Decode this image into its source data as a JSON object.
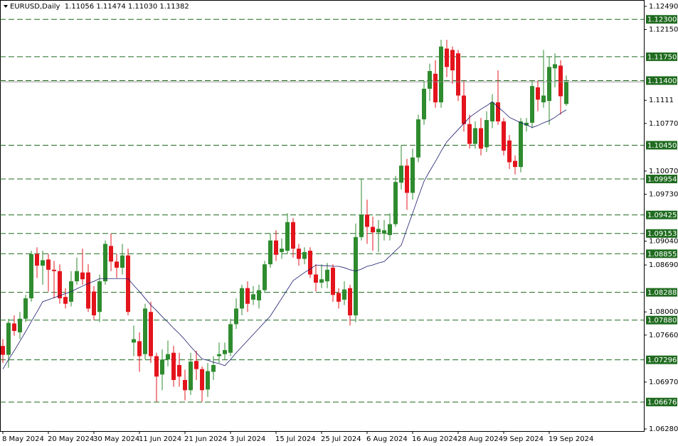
{
  "chart_data": {
    "type": "candlestick",
    "header": "EURUSD,Daily  1.11056 1.11474 1.11030 1.11382",
    "categories": [
      "8 May 2024",
      null,
      null,
      null,
      null,
      null,
      null,
      null,
      "20 May 2024",
      null,
      null,
      null,
      null,
      null,
      null,
      null,
      "30 May 2024",
      null,
      null,
      null,
      null,
      null,
      null,
      null,
      "11 Jun 2024",
      null,
      null,
      null,
      null,
      null,
      null,
      null,
      "21 Jun 2024",
      null,
      null,
      null,
      null,
      null,
      null,
      null,
      "3 Jul 2024",
      null,
      null,
      null,
      null,
      null,
      null,
      null,
      "15 Jul 2024",
      null,
      null,
      null,
      null,
      null,
      null,
      null,
      "25 Jul 2024",
      null,
      null,
      null,
      null,
      null,
      null,
      null,
      "6 Aug 2024",
      null,
      null,
      null,
      null,
      null,
      null,
      null,
      "16 Aug 2024",
      null,
      null,
      null,
      null,
      null,
      null,
      null,
      "28 Aug 2024",
      null,
      null,
      null,
      null,
      null,
      null,
      null,
      "9 Sep 2024",
      null,
      null,
      null,
      null,
      null,
      null,
      null,
      "19 Sep 2024",
      null,
      null,
      null
    ],
    "open": [
      1.075,
      1.0737,
      1.0783,
      1.077,
      1.079,
      1.082,
      1.0885,
      1.0868,
      1.0877,
      1.0862,
      1.086,
      1.0822,
      1.0815,
      1.0845,
      1.0858,
      1.0858,
      1.083,
      1.08,
      1.0845,
      1.0897,
      1.0874,
      1.0865,
      1.0883,
      1.0755,
      1.0757,
      1.0738,
      1.08,
      1.0735,
      1.0708,
      1.073,
      1.074,
      1.0722,
      1.07,
      1.0685,
      1.0728,
      1.0716,
      1.0686,
      1.0712,
      1.0735,
      1.0738,
      1.074,
      1.0782,
      1.0805,
      1.0835,
      1.0818,
      1.0817,
      1.0832,
      1.087,
      1.0905,
      1.0888,
      1.089,
      1.0932,
      1.0893,
      1.0878,
      1.089,
      1.0855,
      1.0843,
      1.0845,
      1.0865,
      1.0828,
      1.0818,
      1.0835,
      1.0795,
      1.091,
      1.0943,
      1.0925,
      1.0917,
      1.0915,
      1.0913,
      1.0929,
      1.099,
      1.1015,
      1.0975,
      1.1027,
      1.1083,
      1.1128,
      1.115,
      1.1108,
      1.1187,
      1.1185,
      1.118,
      1.1118,
      1.1076,
      1.1047,
      1.107,
      1.1042,
      1.108,
      1.1108,
      1.108,
      1.1052,
      1.1022,
      1.1013,
      1.1074,
      1.1078,
      1.113,
      1.1108,
      1.111,
      1.1158,
      1.1162,
      1.11056
    ],
    "high": [
      1.076,
      1.079,
      1.0795,
      1.08,
      1.0825,
      1.089,
      1.0895,
      1.089,
      1.0885,
      1.0875,
      1.087,
      1.0835,
      1.086,
      1.088,
      1.0893,
      1.087,
      1.0838,
      1.0855,
      1.0905,
      1.0915,
      1.0885,
      1.09,
      1.0893,
      1.078,
      1.077,
      1.0812,
      1.0815,
      1.074,
      1.0745,
      1.0758,
      1.075,
      1.074,
      1.0715,
      1.074,
      1.0743,
      1.072,
      1.0725,
      1.0735,
      1.0755,
      1.0755,
      1.079,
      1.082,
      1.084,
      1.0845,
      1.0838,
      1.084,
      1.0875,
      1.0915,
      1.092,
      1.0908,
      1.0945,
      1.0938,
      1.09,
      1.0895,
      1.0895,
      1.087,
      1.087,
      1.0872,
      1.087,
      1.0835,
      1.0845,
      1.084,
      1.093,
      1.0995,
      1.0965,
      1.094,
      1.0935,
      1.0935,
      1.0945,
      1.1,
      1.1045,
      1.1025,
      1.104,
      1.109,
      1.114,
      1.1165,
      1.117,
      1.12,
      1.12,
      1.119,
      1.1185,
      1.114,
      1.109,
      1.108,
      1.1085,
      1.1095,
      1.112,
      1.1155,
      1.1085,
      1.106,
      1.103,
      1.1085,
      1.1085,
      1.114,
      1.114,
      1.1185,
      1.1175,
      1.118,
      1.117,
      1.11474
    ],
    "low": [
      1.0725,
      1.0718,
      1.0765,
      1.076,
      1.0785,
      1.0815,
      1.085,
      1.084,
      1.083,
      1.082,
      1.0812,
      1.0805,
      1.0808,
      1.084,
      1.084,
      1.08,
      1.0788,
      1.0785,
      1.084,
      1.086,
      1.085,
      1.0855,
      1.0795,
      1.0735,
      1.0712,
      1.073,
      1.0725,
      1.0668,
      1.0685,
      1.072,
      1.069,
      1.069,
      1.067,
      1.0678,
      1.07,
      1.0668,
      1.0675,
      1.07,
      1.0725,
      1.073,
      1.0735,
      1.0775,
      1.0795,
      1.08,
      1.081,
      1.0805,
      1.0828,
      1.0865,
      1.0875,
      1.0878,
      1.0885,
      1.088,
      1.0868,
      1.087,
      1.085,
      1.083,
      1.0835,
      1.0835,
      1.0815,
      1.0805,
      1.081,
      1.078,
      1.0785,
      1.0905,
      1.09,
      1.089,
      1.0888,
      1.0905,
      1.0905,
      1.0925,
      1.098,
      1.095,
      1.0965,
      1.102,
      1.1075,
      1.111,
      1.11,
      1.11,
      1.1145,
      1.1135,
      1.111,
      1.1065,
      1.104,
      1.104,
      1.103,
      1.1035,
      1.107,
      1.1075,
      1.103,
      1.101,
      1.1002,
      1.1005,
      1.1065,
      1.107,
      1.1095,
      1.11,
      1.1075,
      1.113,
      1.109,
      1.1103
    ],
    "close": [
      1.0737,
      1.0784,
      1.0772,
      1.079,
      1.082,
      1.0885,
      1.0868,
      1.0876,
      1.0862,
      1.086,
      1.082,
      1.0812,
      1.0845,
      1.086,
      1.0848,
      1.0805,
      1.0795,
      1.0845,
      1.09,
      1.0874,
      1.0865,
      1.0883,
      1.08,
      1.076,
      1.0735,
      1.0805,
      1.0735,
      1.0705,
      1.073,
      1.0738,
      1.07,
      1.0705,
      1.0685,
      1.0727,
      1.0716,
      1.0685,
      1.0713,
      1.0722,
      1.0738,
      1.0744,
      1.0782,
      1.0805,
      1.0835,
      1.0812,
      1.0826,
      1.0832,
      1.087,
      1.0905,
      1.0884,
      1.0893,
      1.0932,
      1.0893,
      1.0878,
      1.0888,
      1.0855,
      1.0843,
      1.0848,
      1.0862,
      1.0825,
      1.0815,
      1.0833,
      1.0795,
      1.091,
      1.0943,
      1.0925,
      1.0917,
      1.0922,
      1.092,
      1.0929,
      1.0991,
      1.1015,
      1.0975,
      1.1027,
      1.1083,
      1.1128,
      1.1154,
      1.1108,
      1.119,
      1.116,
      1.1155,
      1.1118,
      1.1076,
      1.1047,
      1.107,
      1.104,
      1.1082,
      1.1108,
      1.108,
      1.1037,
      1.102,
      1.1013,
      1.108,
      1.1078,
      1.1132,
      1.1112,
      1.1118,
      1.116,
      1.1164,
      1.1117,
      1.11382
    ],
    "ma": [
      1.0716,
      1.073,
      1.0743,
      1.0757,
      1.0771,
      1.0786,
      1.08,
      1.0815,
      1.0818,
      1.0821,
      1.0824,
      1.0827,
      1.083,
      1.0834,
      1.0838,
      1.0842,
      1.0845,
      1.0849,
      1.0849,
      1.0849,
      1.0849,
      1.0849,
      1.0849,
      1.0839,
      1.083,
      1.082,
      1.081,
      1.0802,
      1.0793,
      1.0785,
      1.0776,
      1.0768,
      1.0759,
      1.0749,
      1.074,
      1.0731,
      1.0729,
      1.0726,
      1.0724,
      1.0721,
      1.073,
      1.074,
      1.0749,
      1.0758,
      1.0767,
      1.0776,
      1.0785,
      1.0794,
      1.0807,
      1.082,
      1.0833,
      1.0846,
      1.0852,
      1.0858,
      1.0863,
      1.0869,
      1.0868,
      1.0868,
      1.0867,
      1.0867,
      1.0865,
      1.0862,
      1.086,
      1.0863,
      1.0867,
      1.0869,
      1.0872,
      1.0874,
      1.0882,
      1.089,
      1.0898,
      1.0922,
      1.0945,
      1.0969,
      1.0992,
      1.1007,
      1.1021,
      1.1036,
      1.105,
      1.1059,
      1.1068,
      1.1077,
      1.1086,
      1.1092,
      1.1098,
      1.1103,
      1.1109,
      1.1101,
      1.1094,
      1.1086,
      1.1082,
      1.1078,
      1.1075,
      1.1071,
      1.1074,
      1.1078,
      1.1081,
      1.1086,
      1.1092,
      1.1097
    ],
    "up_color": "#2e8b2e",
    "down_color": "#e3141c",
    "ma_color": "#1a1a6e",
    "level_color": "#1f6b1f",
    "ylim": [
      1.06249,
      1.12584
    ],
    "yticks": [
      {
        "value": 1.1249,
        "label": "1.12490"
      },
      {
        "value": 1.1215,
        "label": "1.12150"
      },
      1.1111,
      {
        "value": 1.1077,
        "label": "1.10770"
      },
      {
        "value": 1.1007,
        "label": "1.10070"
      },
      {
        "value": 1.0973,
        "label": "1.09730"
      },
      {
        "value": 1.0904,
        "label": "1.09040"
      },
      {
        "value": 1.0869,
        "label": "1.08690"
      },
      {
        "value": 1.08,
        "label": "1.08000"
      },
      {
        "value": 1.0766,
        "label": "1.07660"
      },
      {
        "value": 1.0697,
        "label": "1.06970"
      },
      {
        "value": 1.0628,
        "label": "1.06280"
      }
    ],
    "levels": [
      {
        "value": 1.123,
        "label": "1.12300"
      },
      {
        "value": 1.1175,
        "label": "1.11750"
      },
      {
        "value": 1.114,
        "label": "1.11400"
      },
      {
        "value": 1.1045,
        "label": "1.10450"
      },
      {
        "value": 1.09954,
        "label": "1.09954"
      },
      {
        "value": 1.09425,
        "label": "1.09425"
      },
      {
        "value": 1.09153,
        "label": "1.09153"
      },
      {
        "value": 1.08855,
        "label": "1.08855"
      },
      {
        "value": 1.08288,
        "label": "1.08288"
      },
      {
        "value": 1.0788,
        "label": "1.07880"
      },
      {
        "value": 1.07296,
        "label": "1.07296"
      },
      {
        "value": 1.06676,
        "label": "1.06676"
      }
    ]
  }
}
